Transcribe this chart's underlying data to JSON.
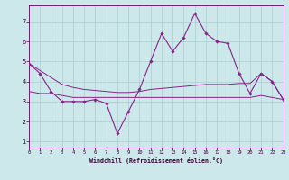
{
  "xlabel": "Windchill (Refroidissement éolien,°C)",
  "background_color": "#cde8ea",
  "grid_color": "#aacccc",
  "line_color": "#882288",
  "x": [
    0,
    1,
    2,
    3,
    4,
    5,
    6,
    7,
    8,
    9,
    10,
    11,
    12,
    13,
    14,
    15,
    16,
    17,
    18,
    19,
    20,
    21,
    22,
    23
  ],
  "series1": [
    4.9,
    4.4,
    3.5,
    3.0,
    3.0,
    3.0,
    3.1,
    2.9,
    1.4,
    2.5,
    3.6,
    5.0,
    6.4,
    5.5,
    6.2,
    7.4,
    6.4,
    6.0,
    5.9,
    4.4,
    3.4,
    4.4,
    4.0,
    3.1
  ],
  "series2": [
    3.5,
    3.4,
    3.4,
    3.3,
    3.2,
    3.2,
    3.2,
    3.2,
    3.2,
    3.2,
    3.2,
    3.2,
    3.2,
    3.2,
    3.2,
    3.2,
    3.2,
    3.2,
    3.2,
    3.2,
    3.2,
    3.3,
    3.2,
    3.1
  ],
  "series3": [
    4.9,
    4.55,
    4.2,
    3.85,
    3.7,
    3.6,
    3.55,
    3.5,
    3.45,
    3.45,
    3.5,
    3.6,
    3.65,
    3.7,
    3.75,
    3.8,
    3.85,
    3.85,
    3.85,
    3.9,
    3.9,
    4.4,
    4.0,
    3.1
  ],
  "xlim": [
    0,
    23
  ],
  "ylim": [
    0.7,
    7.8
  ],
  "xticks": [
    0,
    1,
    2,
    3,
    4,
    5,
    6,
    7,
    8,
    9,
    10,
    11,
    12,
    13,
    14,
    15,
    16,
    17,
    18,
    19,
    20,
    21,
    22,
    23
  ],
  "yticks": [
    1,
    2,
    3,
    4,
    5,
    6,
    7
  ]
}
